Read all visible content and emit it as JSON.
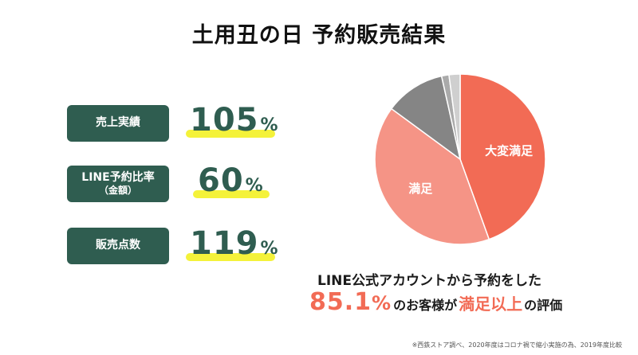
{
  "title": "土用丑の日 予約販売結果",
  "metrics": [
    {
      "label": "売上実績",
      "sublabel": "",
      "value": "105",
      "unit": "%"
    },
    {
      "label": "LINE予約比率",
      "sublabel": "（金額）",
      "value": "60",
      "unit": "%"
    },
    {
      "label": "販売点数",
      "sublabel": "",
      "value": "119",
      "unit": "%"
    }
  ],
  "colors": {
    "label_bg": "#2f5d50",
    "value_text": "#2f5d50",
    "highlight": "#f4f23a",
    "accent": "#f26b55"
  },
  "chart_data": {
    "type": "pie",
    "categories": [
      "大変満足",
      "満足",
      "",
      "",
      ""
    ],
    "values": [
      44.5,
      40.6,
      11.4,
      1.4,
      2.1
    ],
    "colors": [
      "#f26b55",
      "#f59486",
      "#858585",
      "#aaaaaa",
      "#cfcfcf"
    ],
    "title": "",
    "legend": "none",
    "start_angle_deg": 0,
    "direction": "clockwise"
  },
  "summary": {
    "line1": "LINE公式アカウントから予約をした",
    "percent_num": "85.1",
    "percent_unit": "%",
    "mid": "のお客様が",
    "emphasis": "満足以上",
    "tail": "の評価"
  },
  "footnote": "※西鉄ストア調べ、2020年度はコロナ禍で縮小実施の為、2019年度比較"
}
